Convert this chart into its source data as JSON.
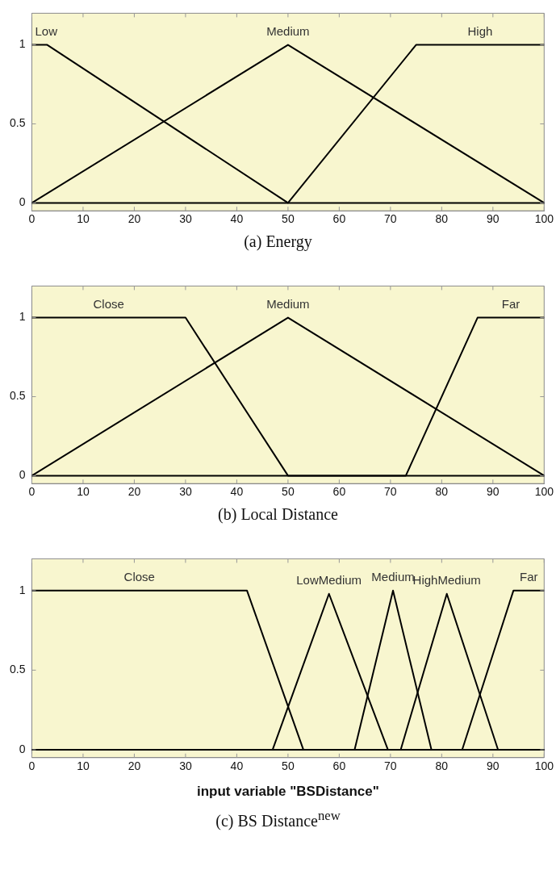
{
  "chart_data": [
    {
      "type": "line",
      "title": "(a) Energy",
      "xlim": [
        0,
        100
      ],
      "ylim": [
        -0.05,
        1.2
      ],
      "xticks": [
        0,
        10,
        20,
        30,
        40,
        50,
        60,
        70,
        80,
        90,
        100
      ],
      "yticks": [
        0,
        0.5,
        1
      ],
      "grid": false,
      "legend": false,
      "marker": "none",
      "line_style": "solid",
      "series": [
        {
          "name": "Low",
          "color": "#000000",
          "x": [
            0,
            3,
            50,
            100
          ],
          "values": [
            1,
            1,
            0,
            0
          ]
        },
        {
          "name": "Medium",
          "color": "#000000",
          "x": [
            0,
            50,
            100
          ],
          "values": [
            0,
            1,
            0
          ]
        },
        {
          "name": "High",
          "color": "#000000",
          "x": [
            0,
            50,
            75,
            100
          ],
          "values": [
            0,
            0,
            1,
            1
          ]
        }
      ]
    },
    {
      "type": "line",
      "title": "(b) Local Distance",
      "xlim": [
        0,
        100
      ],
      "ylim": [
        -0.05,
        1.2
      ],
      "xticks": [
        0,
        10,
        20,
        30,
        40,
        50,
        60,
        70,
        80,
        90,
        100
      ],
      "yticks": [
        0,
        0.5,
        1
      ],
      "grid": false,
      "legend": false,
      "marker": "none",
      "line_style": "solid",
      "series": [
        {
          "name": "Close",
          "color": "#000000",
          "x": [
            0,
            30,
            50,
            100
          ],
          "values": [
            1,
            1,
            0,
            0
          ]
        },
        {
          "name": "Medium",
          "color": "#000000",
          "x": [
            0,
            50,
            100
          ],
          "values": [
            0,
            1,
            0
          ]
        },
        {
          "name": "Far",
          "color": "#000000",
          "x": [
            0,
            73,
            87,
            100
          ],
          "values": [
            0,
            0,
            1,
            1
          ]
        }
      ]
    },
    {
      "type": "line",
      "title": "(c) BS Distance$^{new}$",
      "xlabel": "input variable \"BSDistance\"",
      "xlim": [
        0,
        100
      ],
      "ylim": [
        -0.05,
        1.2
      ],
      "xticks": [
        0,
        10,
        20,
        30,
        40,
        50,
        60,
        70,
        80,
        90,
        100
      ],
      "yticks": [
        0,
        0.5,
        1
      ],
      "grid": false,
      "legend": false,
      "marker": "none",
      "line_style": "solid",
      "series": [
        {
          "name": "Close",
          "color": "#000000",
          "x": [
            0,
            42,
            53,
            100
          ],
          "values": [
            1,
            1,
            0,
            0
          ]
        },
        {
          "name": "LowMedium",
          "color": "#000000",
          "x": [
            0,
            47,
            58,
            69.5,
            100
          ],
          "values": [
            0,
            0,
            0.98,
            0,
            0
          ]
        },
        {
          "name": "Medium",
          "color": "#000000",
          "x": [
            0,
            63,
            70.5,
            78,
            100
          ],
          "values": [
            0,
            0,
            1,
            0,
            0
          ]
        },
        {
          "name": "HighMedium",
          "color": "#000000",
          "x": [
            0,
            72,
            81,
            91,
            100
          ],
          "values": [
            0,
            0,
            0.98,
            0,
            0
          ]
        },
        {
          "name": "Far",
          "color": "#000000",
          "x": [
            0,
            84,
            94,
            100
          ],
          "values": [
            0,
            0,
            1,
            1
          ]
        }
      ]
    }
  ]
}
